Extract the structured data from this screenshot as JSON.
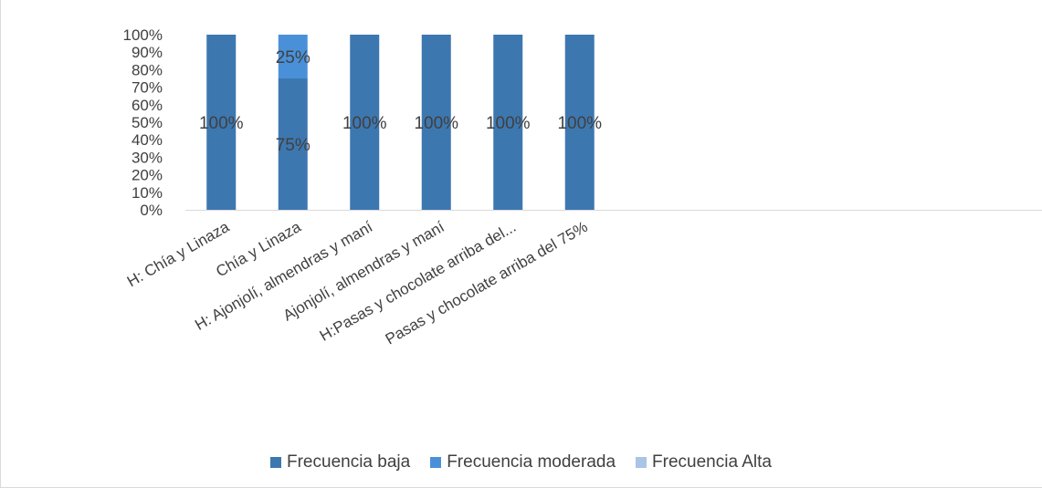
{
  "chart_data": {
    "type": "bar",
    "stacked": true,
    "percent": true,
    "categories": [
      "H: Chía y Linaza",
      "Chía y Linaza",
      "H: Ajonjolí, almendras y maní",
      "Ajonjolí, almendras y maní",
      "H:Pasas y chocolate arriba del...",
      "Pasas y chocolate arriba del 75%"
    ],
    "series": [
      {
        "name": "Frecuencia baja",
        "values": [
          100,
          75,
          100,
          100,
          100,
          100
        ],
        "labels": [
          "100%",
          "75%",
          "100%",
          "100%",
          "100%",
          "100%"
        ]
      },
      {
        "name": "Frecuencia moderada",
        "values": [
          0,
          25,
          0,
          0,
          0,
          0
        ],
        "labels": [
          "",
          "25%",
          "",
          "",
          "",
          ""
        ]
      },
      {
        "name": "Frecuencia Alta",
        "values": [
          0,
          0,
          0,
          0,
          0,
          0
        ],
        "labels": [
          "",
          "",
          "",
          "",
          "",
          ""
        ]
      }
    ],
    "ylim": [
      0,
      100
    ],
    "yticks": [
      "0%",
      "10%",
      "20%",
      "30%",
      "40%",
      "50%",
      "60%",
      "70%",
      "80%",
      "90%",
      "100%"
    ],
    "grid": false,
    "legend_position": "bottom",
    "colors": [
      "#3d77b0",
      "#4a90d9",
      "#a9c4e6"
    ]
  }
}
